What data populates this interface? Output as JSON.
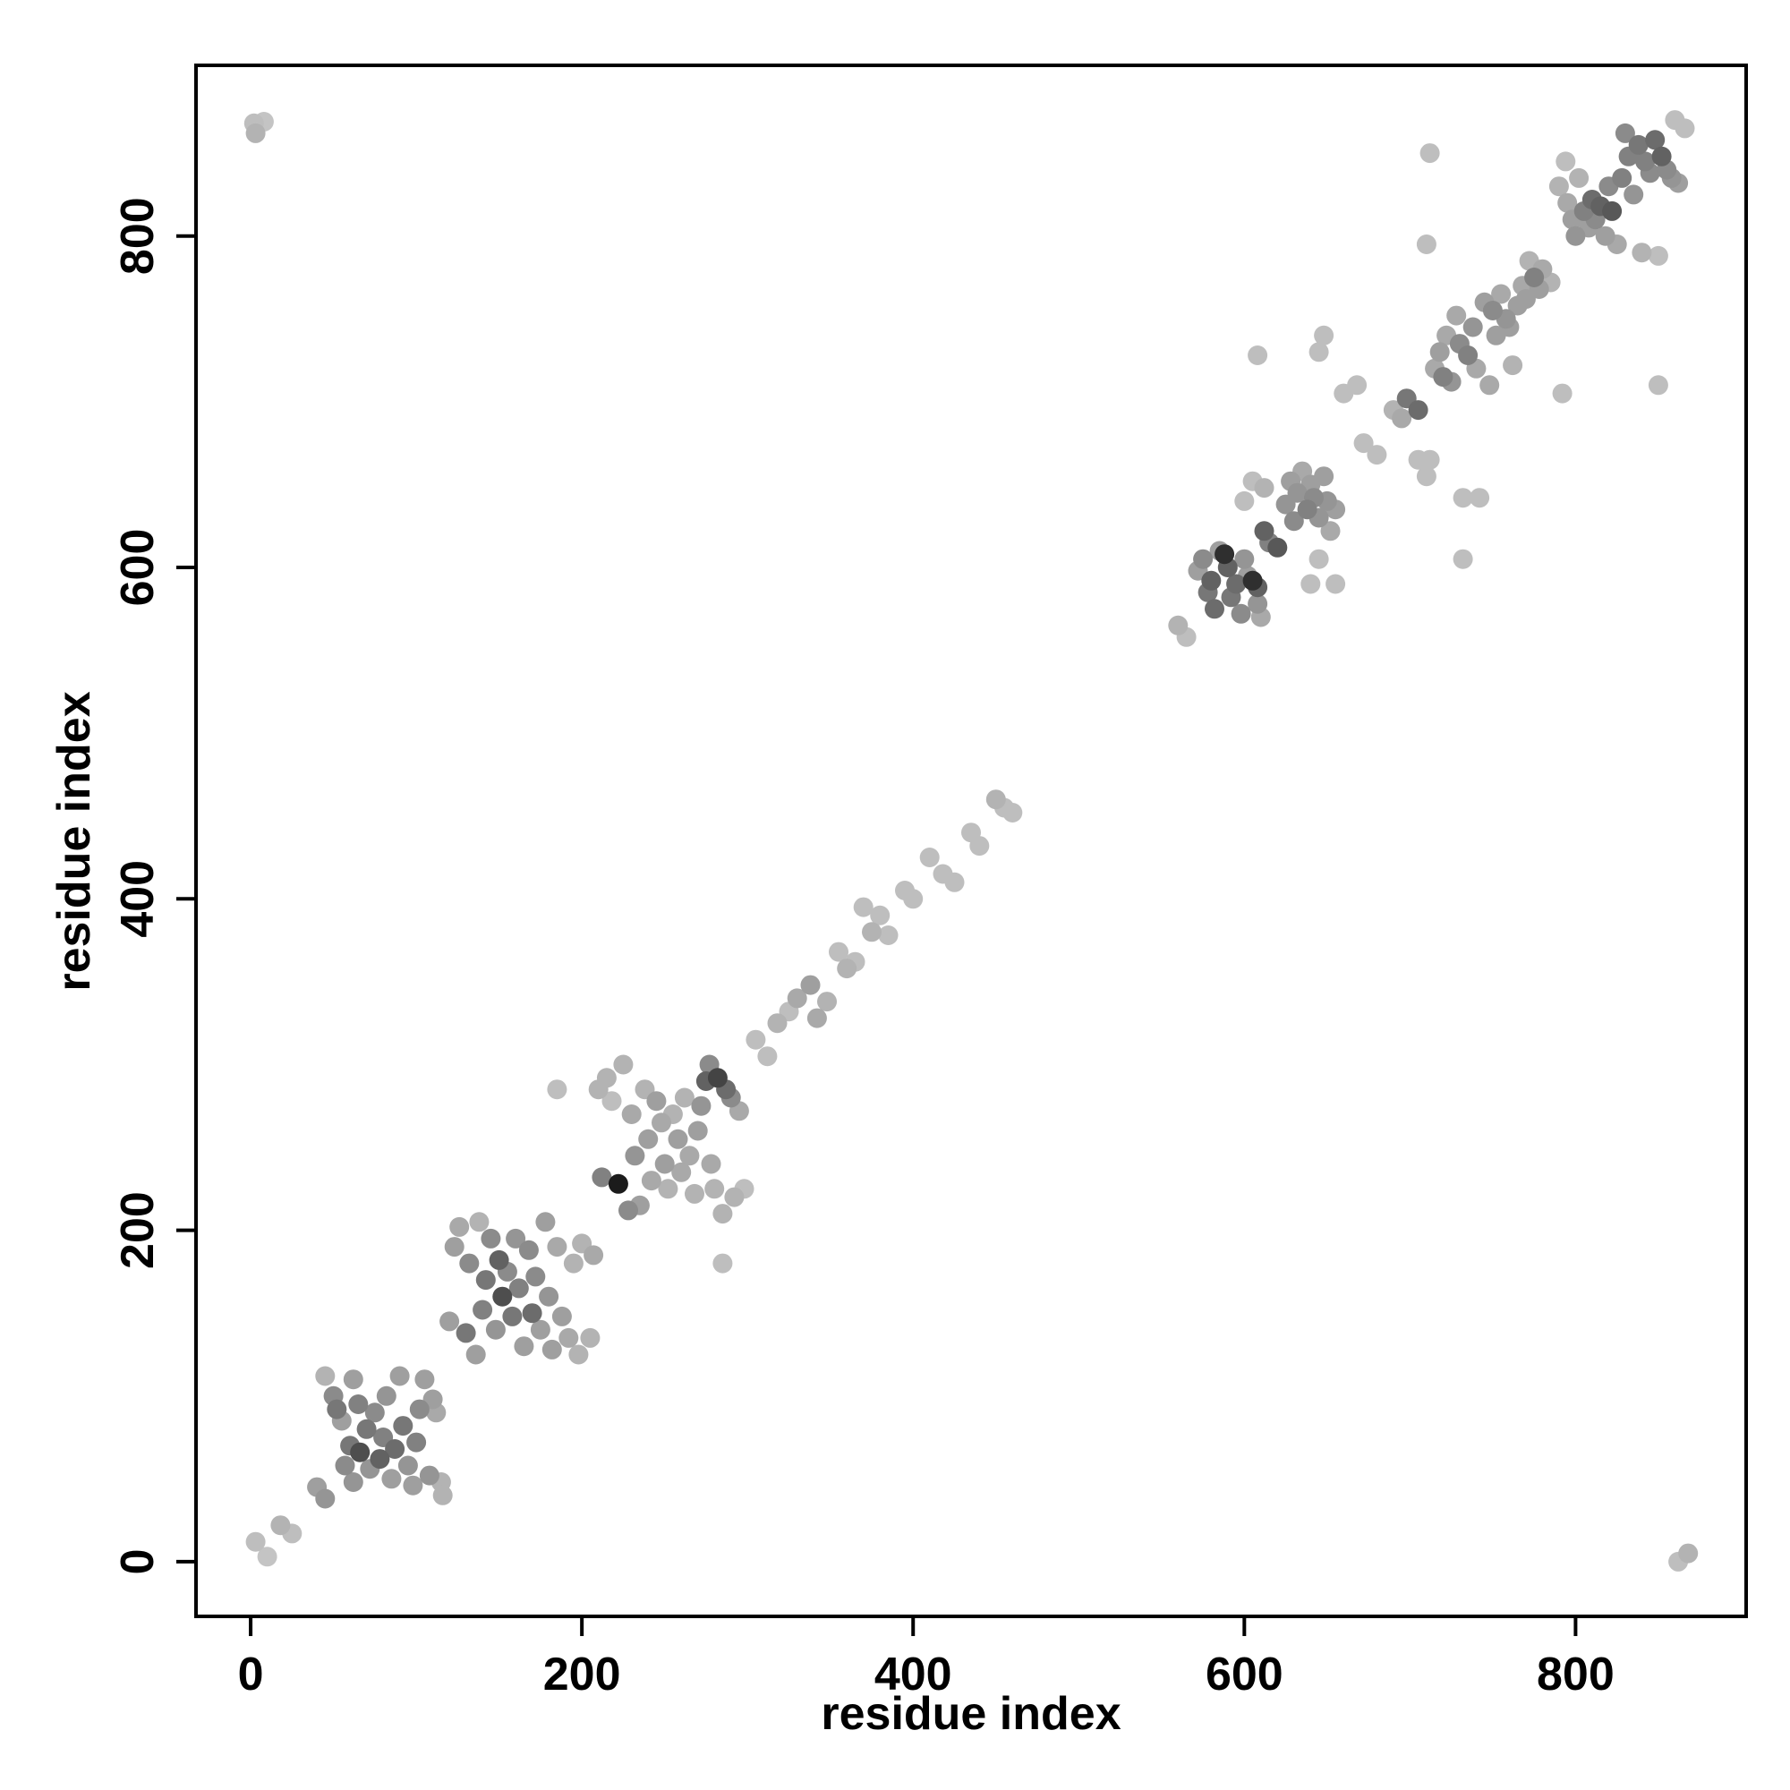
{
  "chart_data": {
    "type": "scatter",
    "title": "",
    "xlabel": "residue index",
    "ylabel": "residue index",
    "xlim": [
      -33,
      903
    ],
    "ylim": [
      -33,
      903
    ],
    "x_ticks": [
      0,
      200,
      400,
      600,
      800
    ],
    "y_ticks": [
      0,
      200,
      400,
      600,
      800
    ],
    "x_tick_labels": [
      "0",
      "200",
      "400",
      "600",
      "800"
    ],
    "y_tick_labels": [
      "0",
      "200",
      "400",
      "600",
      "800"
    ],
    "grid": false,
    "legend": "none",
    "point_shade_range": [
      "#dcdcdc",
      "#111111"
    ],
    "series": [
      {
        "values": [
          [
            2,
            868,
            0.15
          ],
          [
            8,
            869,
            0.12
          ],
          [
            3,
            862,
            0.2
          ],
          [
            3,
            12,
            0.15
          ],
          [
            10,
            3,
            0.12
          ],
          [
            18,
            22,
            0.2
          ],
          [
            25,
            17,
            0.15
          ],
          [
            40,
            45,
            0.3
          ],
          [
            45,
            38,
            0.35
          ],
          [
            45,
            112,
            0.2
          ],
          [
            50,
            100,
            0.4
          ],
          [
            52,
            92,
            0.5
          ],
          [
            55,
            85,
            0.3
          ],
          [
            57,
            58,
            0.4
          ],
          [
            60,
            70,
            0.5
          ],
          [
            62,
            48,
            0.35
          ],
          [
            62,
            110,
            0.3
          ],
          [
            65,
            95,
            0.45
          ],
          [
            66,
            66,
            0.7
          ],
          [
            70,
            80,
            0.5
          ],
          [
            72,
            56,
            0.35
          ],
          [
            75,
            90,
            0.4
          ],
          [
            78,
            62,
            0.6
          ],
          [
            80,
            75,
            0.45
          ],
          [
            82,
            100,
            0.35
          ],
          [
            85,
            50,
            0.3
          ],
          [
            87,
            68,
            0.55
          ],
          [
            90,
            112,
            0.3
          ],
          [
            92,
            82,
            0.5
          ],
          [
            95,
            58,
            0.35
          ],
          [
            98,
            46,
            0.3
          ],
          [
            100,
            72,
            0.45
          ],
          [
            102,
            92,
            0.4
          ],
          [
            105,
            110,
            0.3
          ],
          [
            108,
            52,
            0.35
          ],
          [
            110,
            98,
            0.3
          ],
          [
            112,
            90,
            0.25
          ],
          [
            115,
            48,
            0.2
          ],
          [
            116,
            40,
            0.2
          ],
          [
            120,
            145,
            0.3
          ],
          [
            123,
            190,
            0.3
          ],
          [
            126,
            202,
            0.25
          ],
          [
            130,
            138,
            0.5
          ],
          [
            132,
            180,
            0.4
          ],
          [
            136,
            125,
            0.3
          ],
          [
            138,
            205,
            0.2
          ],
          [
            140,
            152,
            0.45
          ],
          [
            142,
            170,
            0.5
          ],
          [
            145,
            195,
            0.4
          ],
          [
            148,
            140,
            0.35
          ],
          [
            150,
            182,
            0.6
          ],
          [
            152,
            160,
            0.7
          ],
          [
            155,
            175,
            0.4
          ],
          [
            158,
            148,
            0.5
          ],
          [
            160,
            195,
            0.35
          ],
          [
            162,
            165,
            0.45
          ],
          [
            165,
            130,
            0.3
          ],
          [
            168,
            188,
            0.4
          ],
          [
            170,
            150,
            0.55
          ],
          [
            172,
            172,
            0.4
          ],
          [
            175,
            140,
            0.3
          ],
          [
            178,
            205,
            0.3
          ],
          [
            180,
            160,
            0.35
          ],
          [
            182,
            128,
            0.3
          ],
          [
            185,
            190,
            0.25
          ],
          [
            185,
            285,
            0.15
          ],
          [
            188,
            148,
            0.3
          ],
          [
            192,
            135,
            0.25
          ],
          [
            195,
            180,
            0.2
          ],
          [
            198,
            125,
            0.2
          ],
          [
            200,
            192,
            0.2
          ],
          [
            205,
            135,
            0.2
          ],
          [
            207,
            185,
            0.25
          ],
          [
            210,
            285,
            0.2
          ],
          [
            212,
            232,
            0.45
          ],
          [
            215,
            292,
            0.2
          ],
          [
            218,
            278,
            0.15
          ],
          [
            222,
            228,
            0.95
          ],
          [
            225,
            300,
            0.2
          ],
          [
            228,
            212,
            0.4
          ],
          [
            230,
            270,
            0.25
          ],
          [
            232,
            245,
            0.35
          ],
          [
            235,
            215,
            0.3
          ],
          [
            238,
            285,
            0.2
          ],
          [
            240,
            255,
            0.3
          ],
          [
            242,
            230,
            0.25
          ],
          [
            245,
            278,
            0.3
          ],
          [
            248,
            265,
            0.25
          ],
          [
            250,
            240,
            0.3
          ],
          [
            252,
            225,
            0.2
          ],
          [
            255,
            270,
            0.2
          ],
          [
            258,
            255,
            0.3
          ],
          [
            260,
            235,
            0.25
          ],
          [
            262,
            280,
            0.2
          ],
          [
            265,
            245,
            0.25
          ],
          [
            268,
            222,
            0.2
          ],
          [
            270,
            260,
            0.3
          ],
          [
            272,
            275,
            0.35
          ],
          [
            275,
            290,
            0.6
          ],
          [
            277,
            300,
            0.4
          ],
          [
            278,
            240,
            0.25
          ],
          [
            280,
            225,
            0.2
          ],
          [
            282,
            292,
            0.75
          ],
          [
            285,
            210,
            0.2
          ],
          [
            285,
            180,
            0.15
          ],
          [
            287,
            285,
            0.55
          ],
          [
            290,
            280,
            0.4
          ],
          [
            292,
            220,
            0.2
          ],
          [
            295,
            272,
            0.25
          ],
          [
            298,
            225,
            0.15
          ],
          [
            305,
            315,
            0.15
          ],
          [
            312,
            305,
            0.15
          ],
          [
            318,
            325,
            0.2
          ],
          [
            325,
            332,
            0.15
          ],
          [
            330,
            340,
            0.25
          ],
          [
            338,
            348,
            0.3
          ],
          [
            342,
            328,
            0.25
          ],
          [
            348,
            338,
            0.2
          ],
          [
            355,
            368,
            0.15
          ],
          [
            360,
            358,
            0.2
          ],
          [
            365,
            362,
            0.15
          ],
          [
            370,
            395,
            0.15
          ],
          [
            375,
            380,
            0.2
          ],
          [
            380,
            390,
            0.15
          ],
          [
            385,
            378,
            0.15
          ],
          [
            395,
            405,
            0.15
          ],
          [
            400,
            400,
            0.15
          ],
          [
            410,
            425,
            0.15
          ],
          [
            418,
            415,
            0.15
          ],
          [
            425,
            410,
            0.15
          ],
          [
            435,
            440,
            0.15
          ],
          [
            440,
            432,
            0.15
          ],
          [
            450,
            460,
            0.2
          ],
          [
            455,
            455,
            0.15
          ],
          [
            460,
            452,
            0.15
          ],
          [
            560,
            565,
            0.2
          ],
          [
            565,
            558,
            0.15
          ],
          [
            572,
            598,
            0.3
          ],
          [
            575,
            605,
            0.4
          ],
          [
            578,
            585,
            0.5
          ],
          [
            580,
            592,
            0.6
          ],
          [
            582,
            575,
            0.55
          ],
          [
            585,
            610,
            0.3
          ],
          [
            588,
            608,
            0.85
          ],
          [
            590,
            600,
            0.6
          ],
          [
            592,
            582,
            0.5
          ],
          [
            595,
            590,
            0.55
          ],
          [
            598,
            572,
            0.4
          ],
          [
            600,
            605,
            0.35
          ],
          [
            602,
            595,
            0.3
          ],
          [
            605,
            592,
            0.85
          ],
          [
            608,
            588,
            0.6
          ],
          [
            608,
            578,
            0.35
          ],
          [
            610,
            570,
            0.25
          ],
          [
            612,
            622,
            0.6
          ],
          [
            615,
            615,
            0.45
          ],
          [
            620,
            612,
            0.65
          ],
          [
            600,
            640,
            0.15
          ],
          [
            605,
            652,
            0.15
          ],
          [
            608,
            728,
            0.15
          ],
          [
            612,
            648,
            0.2
          ],
          [
            625,
            638,
            0.35
          ],
          [
            628,
            652,
            0.3
          ],
          [
            630,
            628,
            0.4
          ],
          [
            632,
            645,
            0.35
          ],
          [
            635,
            658,
            0.25
          ],
          [
            638,
            635,
            0.45
          ],
          [
            640,
            650,
            0.3
          ],
          [
            642,
            642,
            0.4
          ],
          [
            645,
            630,
            0.35
          ],
          [
            648,
            655,
            0.3
          ],
          [
            650,
            640,
            0.35
          ],
          [
            652,
            622,
            0.25
          ],
          [
            655,
            635,
            0.3
          ],
          [
            640,
            590,
            0.15
          ],
          [
            645,
            605,
            0.15
          ],
          [
            645,
            730,
            0.15
          ],
          [
            648,
            740,
            0.15
          ],
          [
            655,
            590,
            0.15
          ],
          [
            660,
            705,
            0.15
          ],
          [
            668,
            710,
            0.15
          ],
          [
            672,
            675,
            0.15
          ],
          [
            680,
            668,
            0.15
          ],
          [
            690,
            695,
            0.2
          ],
          [
            695,
            690,
            0.25
          ],
          [
            698,
            702,
            0.5
          ],
          [
            705,
            695,
            0.55
          ],
          [
            705,
            665,
            0.15
          ],
          [
            710,
            655,
            0.15
          ],
          [
            712,
            665,
            0.15
          ],
          [
            710,
            795,
            0.15
          ],
          [
            712,
            850,
            0.15
          ],
          [
            715,
            720,
            0.25
          ],
          [
            718,
            730,
            0.3
          ],
          [
            720,
            715,
            0.45
          ],
          [
            722,
            740,
            0.25
          ],
          [
            725,
            712,
            0.35
          ],
          [
            728,
            752,
            0.25
          ],
          [
            730,
            735,
            0.4
          ],
          [
            732,
            605,
            0.15
          ],
          [
            732,
            642,
            0.15
          ],
          [
            735,
            728,
            0.45
          ],
          [
            738,
            745,
            0.35
          ],
          [
            740,
            720,
            0.25
          ],
          [
            742,
            642,
            0.15
          ],
          [
            745,
            760,
            0.3
          ],
          [
            748,
            710,
            0.25
          ],
          [
            750,
            755,
            0.4
          ],
          [
            752,
            740,
            0.3
          ],
          [
            755,
            765,
            0.25
          ],
          [
            758,
            750,
            0.35
          ],
          [
            760,
            745,
            0.3
          ],
          [
            762,
            722,
            0.2
          ],
          [
            765,
            758,
            0.3
          ],
          [
            768,
            770,
            0.25
          ],
          [
            770,
            762,
            0.3
          ],
          [
            772,
            785,
            0.2
          ],
          [
            775,
            775,
            0.45
          ],
          [
            778,
            768,
            0.3
          ],
          [
            780,
            780,
            0.25
          ],
          [
            785,
            772,
            0.2
          ],
          [
            790,
            830,
            0.2
          ],
          [
            792,
            705,
            0.15
          ],
          [
            794,
            845,
            0.15
          ],
          [
            795,
            820,
            0.25
          ],
          [
            798,
            810,
            0.3
          ],
          [
            800,
            800,
            0.35
          ],
          [
            802,
            835,
            0.2
          ],
          [
            805,
            815,
            0.45
          ],
          [
            808,
            805,
            0.3
          ],
          [
            810,
            822,
            0.55
          ],
          [
            812,
            810,
            0.4
          ],
          [
            815,
            818,
            0.6
          ],
          [
            818,
            800,
            0.3
          ],
          [
            820,
            830,
            0.4
          ],
          [
            822,
            815,
            0.65
          ],
          [
            825,
            795,
            0.25
          ],
          [
            828,
            835,
            0.45
          ],
          [
            830,
            862,
            0.4
          ],
          [
            832,
            848,
            0.45
          ],
          [
            835,
            825,
            0.35
          ],
          [
            838,
            855,
            0.5
          ],
          [
            840,
            790,
            0.2
          ],
          [
            842,
            845,
            0.45
          ],
          [
            845,
            838,
            0.4
          ],
          [
            848,
            858,
            0.55
          ],
          [
            850,
            788,
            0.15
          ],
          [
            850,
            710,
            0.15
          ],
          [
            852,
            848,
            0.6
          ],
          [
            855,
            840,
            0.4
          ],
          [
            858,
            835,
            0.35
          ],
          [
            860,
            870,
            0.15
          ],
          [
            862,
            832,
            0.3
          ],
          [
            866,
            865,
            0.15
          ],
          [
            862,
            0,
            0.15
          ],
          [
            868,
            5,
            0.2
          ]
        ]
      }
    ]
  }
}
